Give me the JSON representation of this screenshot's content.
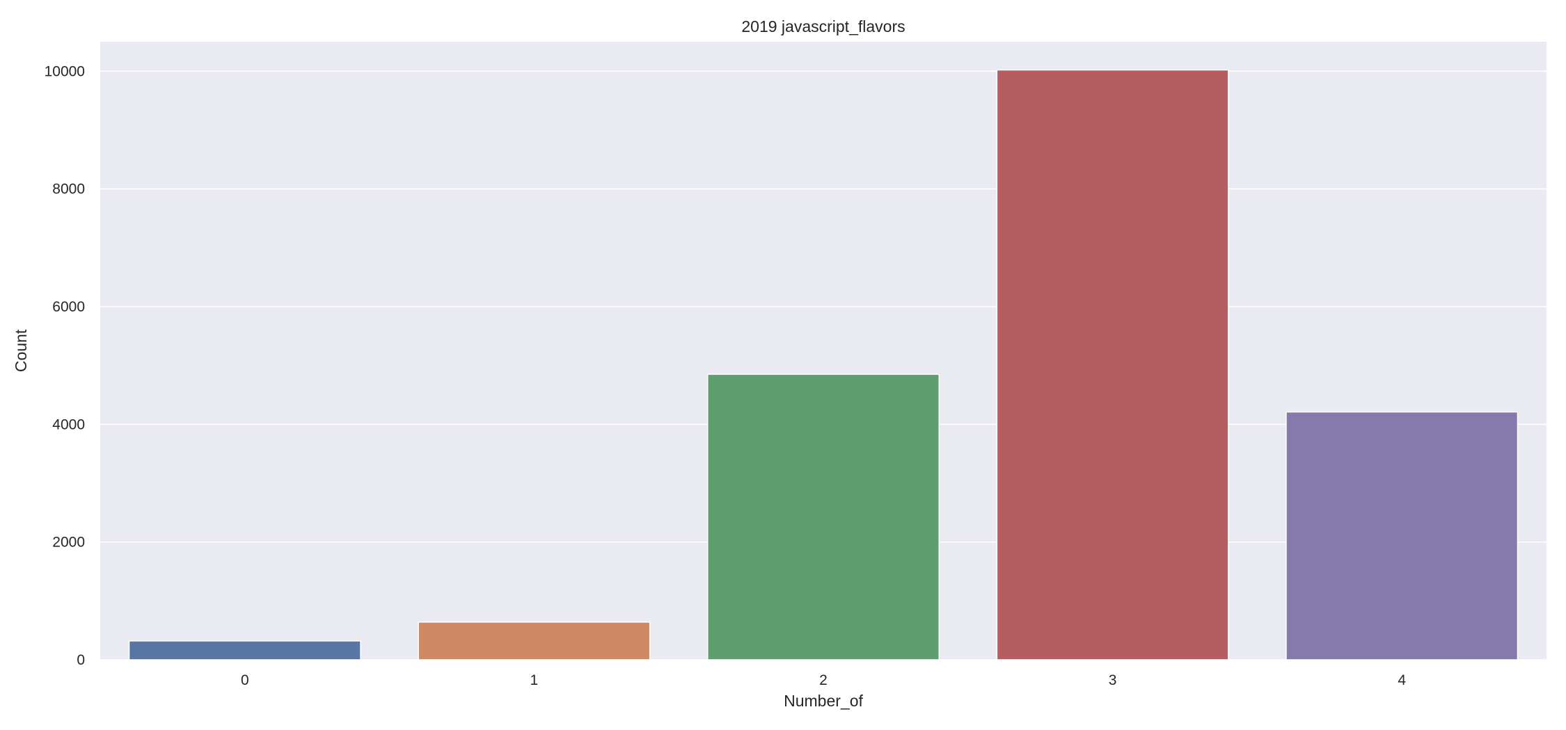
{
  "chart_data": {
    "type": "bar",
    "title": "2019 javascript_flavors",
    "xlabel": "Number_of",
    "ylabel": "Count",
    "categories": [
      "0",
      "1",
      "2",
      "3",
      "4"
    ],
    "values": [
      320,
      640,
      4850,
      10020,
      4210
    ],
    "ylim": [
      0,
      10500
    ],
    "yticks": [
      0,
      2000,
      4000,
      6000,
      8000,
      10000
    ],
    "grid": true,
    "colors": [
      "#5975a4",
      "#cc8963",
      "#5f9e6e",
      "#b55d60",
      "#857aab"
    ],
    "plot_background": "#eaeaf2",
    "grid_color": "#ffffff"
  }
}
